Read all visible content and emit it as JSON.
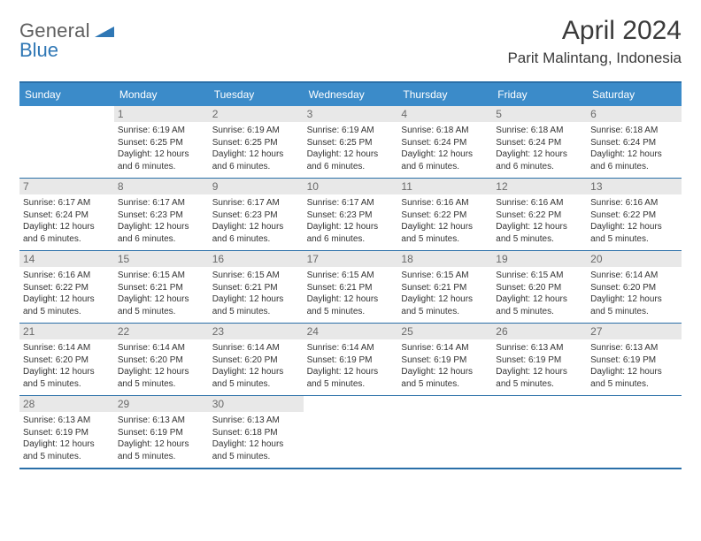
{
  "brand": {
    "general": "General",
    "blue": "Blue"
  },
  "title": "April 2024",
  "location": "Parit Malintang, Indonesia",
  "colors": {
    "header_bg": "#3b8bc9",
    "rule": "#2a6fa8",
    "daynum_bg": "#e8e8e8",
    "text": "#333333",
    "logo_gray": "#5f5f5f",
    "logo_blue": "#2f77b5"
  },
  "daynames": [
    "Sunday",
    "Monday",
    "Tuesday",
    "Wednesday",
    "Thursday",
    "Friday",
    "Saturday"
  ],
  "weeks": [
    [
      {
        "blank": true
      },
      {
        "n": "1",
        "sr": "Sunrise: 6:19 AM",
        "ss": "Sunset: 6:25 PM",
        "d1": "Daylight: 12 hours",
        "d2": "and 6 minutes."
      },
      {
        "n": "2",
        "sr": "Sunrise: 6:19 AM",
        "ss": "Sunset: 6:25 PM",
        "d1": "Daylight: 12 hours",
        "d2": "and 6 minutes."
      },
      {
        "n": "3",
        "sr": "Sunrise: 6:19 AM",
        "ss": "Sunset: 6:25 PM",
        "d1": "Daylight: 12 hours",
        "d2": "and 6 minutes."
      },
      {
        "n": "4",
        "sr": "Sunrise: 6:18 AM",
        "ss": "Sunset: 6:24 PM",
        "d1": "Daylight: 12 hours",
        "d2": "and 6 minutes."
      },
      {
        "n": "5",
        "sr": "Sunrise: 6:18 AM",
        "ss": "Sunset: 6:24 PM",
        "d1": "Daylight: 12 hours",
        "d2": "and 6 minutes."
      },
      {
        "n": "6",
        "sr": "Sunrise: 6:18 AM",
        "ss": "Sunset: 6:24 PM",
        "d1": "Daylight: 12 hours",
        "d2": "and 6 minutes."
      }
    ],
    [
      {
        "n": "7",
        "sr": "Sunrise: 6:17 AM",
        "ss": "Sunset: 6:24 PM",
        "d1": "Daylight: 12 hours",
        "d2": "and 6 minutes."
      },
      {
        "n": "8",
        "sr": "Sunrise: 6:17 AM",
        "ss": "Sunset: 6:23 PM",
        "d1": "Daylight: 12 hours",
        "d2": "and 6 minutes."
      },
      {
        "n": "9",
        "sr": "Sunrise: 6:17 AM",
        "ss": "Sunset: 6:23 PM",
        "d1": "Daylight: 12 hours",
        "d2": "and 6 minutes."
      },
      {
        "n": "10",
        "sr": "Sunrise: 6:17 AM",
        "ss": "Sunset: 6:23 PM",
        "d1": "Daylight: 12 hours",
        "d2": "and 6 minutes."
      },
      {
        "n": "11",
        "sr": "Sunrise: 6:16 AM",
        "ss": "Sunset: 6:22 PM",
        "d1": "Daylight: 12 hours",
        "d2": "and 5 minutes."
      },
      {
        "n": "12",
        "sr": "Sunrise: 6:16 AM",
        "ss": "Sunset: 6:22 PM",
        "d1": "Daylight: 12 hours",
        "d2": "and 5 minutes."
      },
      {
        "n": "13",
        "sr": "Sunrise: 6:16 AM",
        "ss": "Sunset: 6:22 PM",
        "d1": "Daylight: 12 hours",
        "d2": "and 5 minutes."
      }
    ],
    [
      {
        "n": "14",
        "sr": "Sunrise: 6:16 AM",
        "ss": "Sunset: 6:22 PM",
        "d1": "Daylight: 12 hours",
        "d2": "and 5 minutes."
      },
      {
        "n": "15",
        "sr": "Sunrise: 6:15 AM",
        "ss": "Sunset: 6:21 PM",
        "d1": "Daylight: 12 hours",
        "d2": "and 5 minutes."
      },
      {
        "n": "16",
        "sr": "Sunrise: 6:15 AM",
        "ss": "Sunset: 6:21 PM",
        "d1": "Daylight: 12 hours",
        "d2": "and 5 minutes."
      },
      {
        "n": "17",
        "sr": "Sunrise: 6:15 AM",
        "ss": "Sunset: 6:21 PM",
        "d1": "Daylight: 12 hours",
        "d2": "and 5 minutes."
      },
      {
        "n": "18",
        "sr": "Sunrise: 6:15 AM",
        "ss": "Sunset: 6:21 PM",
        "d1": "Daylight: 12 hours",
        "d2": "and 5 minutes."
      },
      {
        "n": "19",
        "sr": "Sunrise: 6:15 AM",
        "ss": "Sunset: 6:20 PM",
        "d1": "Daylight: 12 hours",
        "d2": "and 5 minutes."
      },
      {
        "n": "20",
        "sr": "Sunrise: 6:14 AM",
        "ss": "Sunset: 6:20 PM",
        "d1": "Daylight: 12 hours",
        "d2": "and 5 minutes."
      }
    ],
    [
      {
        "n": "21",
        "sr": "Sunrise: 6:14 AM",
        "ss": "Sunset: 6:20 PM",
        "d1": "Daylight: 12 hours",
        "d2": "and 5 minutes."
      },
      {
        "n": "22",
        "sr": "Sunrise: 6:14 AM",
        "ss": "Sunset: 6:20 PM",
        "d1": "Daylight: 12 hours",
        "d2": "and 5 minutes."
      },
      {
        "n": "23",
        "sr": "Sunrise: 6:14 AM",
        "ss": "Sunset: 6:20 PM",
        "d1": "Daylight: 12 hours",
        "d2": "and 5 minutes."
      },
      {
        "n": "24",
        "sr": "Sunrise: 6:14 AM",
        "ss": "Sunset: 6:19 PM",
        "d1": "Daylight: 12 hours",
        "d2": "and 5 minutes."
      },
      {
        "n": "25",
        "sr": "Sunrise: 6:14 AM",
        "ss": "Sunset: 6:19 PM",
        "d1": "Daylight: 12 hours",
        "d2": "and 5 minutes."
      },
      {
        "n": "26",
        "sr": "Sunrise: 6:13 AM",
        "ss": "Sunset: 6:19 PM",
        "d1": "Daylight: 12 hours",
        "d2": "and 5 minutes."
      },
      {
        "n": "27",
        "sr": "Sunrise: 6:13 AM",
        "ss": "Sunset: 6:19 PM",
        "d1": "Daylight: 12 hours",
        "d2": "and 5 minutes."
      }
    ],
    [
      {
        "n": "28",
        "sr": "Sunrise: 6:13 AM",
        "ss": "Sunset: 6:19 PM",
        "d1": "Daylight: 12 hours",
        "d2": "and 5 minutes."
      },
      {
        "n": "29",
        "sr": "Sunrise: 6:13 AM",
        "ss": "Sunset: 6:19 PM",
        "d1": "Daylight: 12 hours",
        "d2": "and 5 minutes."
      },
      {
        "n": "30",
        "sr": "Sunrise: 6:13 AM",
        "ss": "Sunset: 6:18 PM",
        "d1": "Daylight: 12 hours",
        "d2": "and 5 minutes."
      },
      {
        "blank": true
      },
      {
        "blank": true
      },
      {
        "blank": true
      },
      {
        "blank": true
      }
    ]
  ]
}
